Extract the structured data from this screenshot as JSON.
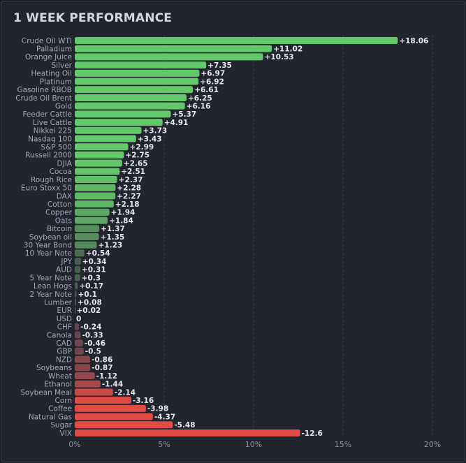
{
  "chart_data": {
    "type": "bar",
    "title": "1 WEEK PERFORMANCE",
    "orientation": "horizontal",
    "xlabel": "",
    "ylabel": "",
    "xlim": [
      0,
      20
    ],
    "x_ticks": [
      "0%",
      "5%",
      "10%",
      "15%",
      "20%"
    ],
    "grid": "vertical dashed",
    "positive_color": "#62c86a",
    "negative_color": "#e24a45",
    "categories": [
      "Crude Oil WTI",
      "Palladium",
      "Orange Juice",
      "Silver",
      "Heating Oil",
      "Platinum",
      "Gasoline RBOB",
      "Crude Oil Brent",
      "Gold",
      "Feeder Cattle",
      "Live Cattle",
      "Nikkei 225",
      "Nasdaq 100",
      "S&P 500",
      "Russell 2000",
      "DJIA",
      "Cocoa",
      "Rough Rice",
      "Euro Stoxx 50",
      "DAX",
      "Cotton",
      "Copper",
      "Oats",
      "Bitcoin",
      "Soybean oil",
      "30 Year Bond",
      "10 Year Note",
      "JPY",
      "AUD",
      "5 Year Note",
      "Lean Hogs",
      "2 Year Note",
      "Lumber",
      "EUR",
      "USD",
      "CHF",
      "Canola",
      "CAD",
      "GBP",
      "NZD",
      "Soybeans",
      "Wheat",
      "Ethanol",
      "Soybean Meal",
      "Corn",
      "Coffee",
      "Natural Gas",
      "Sugar",
      "VIX"
    ],
    "values": [
      18.06,
      11.02,
      10.53,
      7.35,
      6.97,
      6.92,
      6.61,
      6.25,
      6.16,
      5.37,
      4.91,
      3.73,
      3.43,
      2.99,
      2.75,
      2.65,
      2.51,
      2.37,
      2.28,
      2.27,
      2.18,
      1.94,
      1.84,
      1.37,
      1.35,
      1.23,
      0.54,
      0.34,
      0.31,
      0.3,
      0.17,
      0.1,
      0.08,
      0.02,
      0,
      -0.24,
      -0.33,
      -0.46,
      -0.5,
      -0.86,
      -0.87,
      -1.12,
      -1.44,
      -2.14,
      -3.16,
      -3.98,
      -4.37,
      -5.48,
      -12.6
    ],
    "value_labels": [
      "+18.06",
      "+11.02",
      "+10.53",
      "+7.35",
      "+6.97",
      "+6.92",
      "+6.61",
      "+6.25",
      "+6.16",
      "+5.37",
      "+4.91",
      "+3.73",
      "+3.43",
      "+2.99",
      "+2.75",
      "+2.65",
      "+2.51",
      "+2.37",
      "+2.28",
      "+2.27",
      "+2.18",
      "+1.94",
      "+1.84",
      "+1.37",
      "+1.35",
      "+1.23",
      "+0.54",
      "+0.34",
      "+0.31",
      "+0.3",
      "+0.17",
      "+0.1",
      "+0.08",
      "+0.02",
      "0",
      "-0.24",
      "-0.33",
      "-0.46",
      "-0.5",
      "-0.86",
      "-0.87",
      "-1.12",
      "-1.44",
      "-2.14",
      "-3.16",
      "-3.98",
      "-4.37",
      "-5.48",
      "-12.6"
    ]
  }
}
